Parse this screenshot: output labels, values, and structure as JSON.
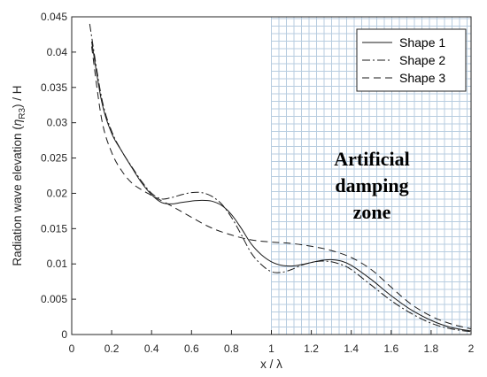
{
  "chart_data": {
    "type": "line",
    "xlabel": "x / λ",
    "ylabel_main": "Radiation wave elevation (",
    "ylabel_eta": "η",
    "ylabel_sub": "R3",
    "ylabel_tail": ") / H",
    "xlim": [
      0,
      2
    ],
    "ylim": [
      0,
      0.045
    ],
    "xticks": [
      "0",
      "0.2",
      "0.4",
      "0.6",
      "0.8",
      "1",
      "1.2",
      "1.4",
      "1.6",
      "1.8",
      "2"
    ],
    "yticks": [
      "0",
      "0.005",
      "0.01",
      "0.015",
      "0.02",
      "0.025",
      "0.03",
      "0.035",
      "0.04",
      "0.045"
    ],
    "legend_position": "top-right",
    "damping_zone": {
      "x_range": [
        1,
        2
      ],
      "label_lines": [
        "Artificial",
        "damping",
        "zone"
      ]
    },
    "series": [
      {
        "name": "Shape 1",
        "style": "solid",
        "x": [
          0.1,
          0.15,
          0.2,
          0.25,
          0.3,
          0.35,
          0.4,
          0.45,
          0.5,
          0.55,
          0.6,
          0.65,
          0.7,
          0.75,
          0.8,
          0.85,
          0.9,
          0.95,
          1.0,
          1.05,
          1.1,
          1.15,
          1.2,
          1.25,
          1.3,
          1.35,
          1.4,
          1.5,
          1.6,
          1.7,
          1.8,
          1.9,
          2.0
        ],
        "y": [
          0.0415,
          0.033,
          0.0285,
          0.026,
          0.0237,
          0.0215,
          0.0198,
          0.0187,
          0.0185,
          0.0187,
          0.0189,
          0.019,
          0.0189,
          0.0183,
          0.017,
          0.015,
          0.0128,
          0.0113,
          0.0103,
          0.0098,
          0.0097,
          0.0099,
          0.0102,
          0.0105,
          0.0106,
          0.0104,
          0.0098,
          0.0078,
          0.0055,
          0.0035,
          0.002,
          0.001,
          0.0005
        ]
      },
      {
        "name": "Shape 2",
        "style": "dashdot",
        "x": [
          0.09,
          0.15,
          0.2,
          0.25,
          0.3,
          0.35,
          0.4,
          0.45,
          0.5,
          0.55,
          0.6,
          0.65,
          0.7,
          0.75,
          0.8,
          0.85,
          0.9,
          0.95,
          1.0,
          1.05,
          1.1,
          1.15,
          1.2,
          1.25,
          1.3,
          1.35,
          1.4,
          1.5,
          1.6,
          1.7,
          1.8,
          1.9,
          2.0
        ],
        "y": [
          0.044,
          0.0335,
          0.0288,
          0.026,
          0.0238,
          0.0217,
          0.02,
          0.0192,
          0.0194,
          0.0198,
          0.0201,
          0.0201,
          0.0196,
          0.0185,
          0.0166,
          0.0141,
          0.0115,
          0.0099,
          0.0089,
          0.0088,
          0.0092,
          0.0098,
          0.0102,
          0.0104,
          0.0103,
          0.0099,
          0.0092,
          0.007,
          0.0048,
          0.003,
          0.0016,
          0.0008,
          0.0004
        ]
      },
      {
        "name": "Shape 3",
        "style": "dashed",
        "x": [
          0.1,
          0.15,
          0.2,
          0.25,
          0.3,
          0.35,
          0.4,
          0.5,
          0.6,
          0.7,
          0.8,
          0.9,
          1.0,
          1.1,
          1.2,
          1.3,
          1.4,
          1.5,
          1.6,
          1.7,
          1.8,
          1.9,
          2.0
        ],
        "y": [
          0.0408,
          0.0305,
          0.0258,
          0.0232,
          0.0215,
          0.0205,
          0.0197,
          0.0182,
          0.0166,
          0.0151,
          0.0141,
          0.0134,
          0.0131,
          0.0129,
          0.0125,
          0.0119,
          0.0109,
          0.0092,
          0.0067,
          0.0043,
          0.0026,
          0.0015,
          0.0008
        ]
      }
    ]
  },
  "colors": {
    "grid": "#b8cde0",
    "axis": "#262626",
    "line": "#1a1a1a"
  }
}
